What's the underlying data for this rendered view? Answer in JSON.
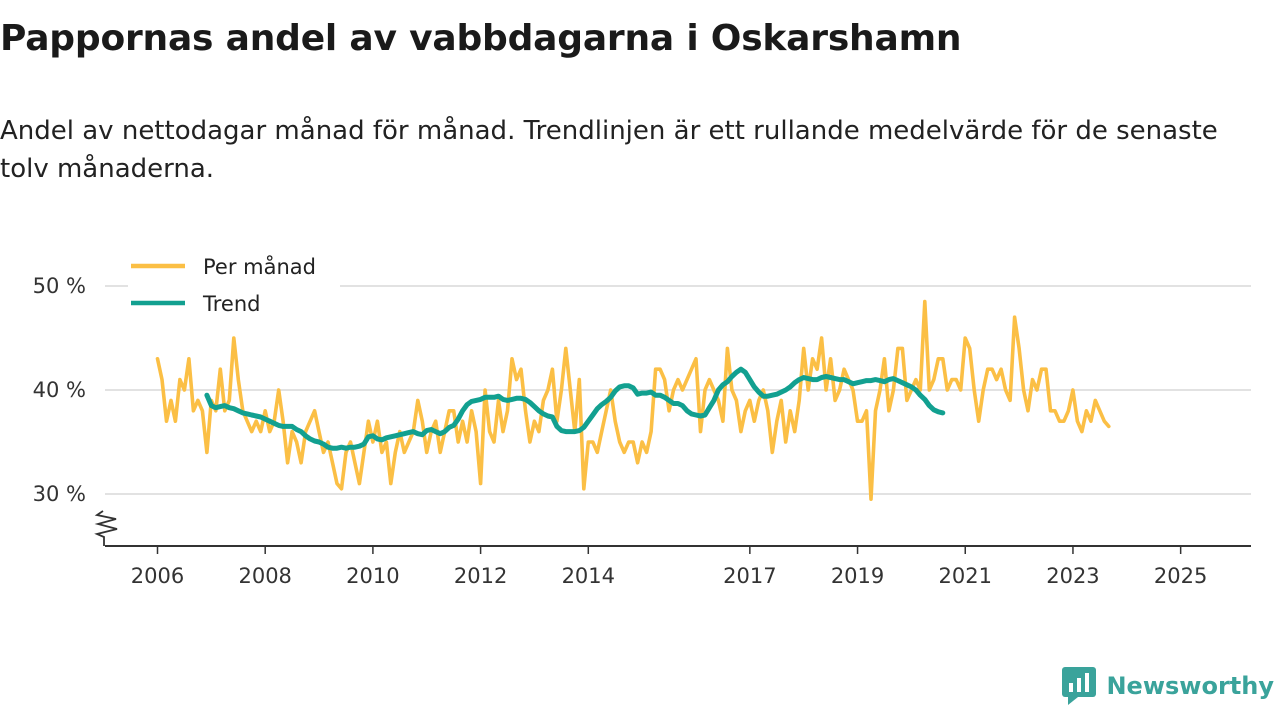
{
  "header": {
    "title": "Pappornas andel av vabbdagarna i Oskarshamn",
    "subtitle": "Andel av nettodagar månad för månad. Trendlinjen är ett rullande medelvärde för de senaste tolv månaderna."
  },
  "brand": {
    "name": "Newsworthy",
    "icon": "newsworthy-logo-icon",
    "color": "#3aa39b"
  },
  "chart_data": {
    "type": "line",
    "title": "Pappornas andel av vabbdagarna i Oskarshamn",
    "ylabel": "",
    "xlabel": "",
    "ylim": [
      25,
      52
    ],
    "xlim": [
      2005.5,
      2026.3
    ],
    "yticks": [
      30,
      40,
      50
    ],
    "ytick_labels": [
      "30 %",
      "40 %",
      "50 %"
    ],
    "xticks": [
      2006,
      2008,
      2010,
      2012,
      2014,
      2017,
      2019,
      2021,
      2023,
      2025
    ],
    "xtick_labels": [
      "2006",
      "2008",
      "2010",
      "2012",
      "2014",
      "2017",
      "2019",
      "2021",
      "2023",
      "2025"
    ],
    "grid": true,
    "legend_position": "top-left",
    "legend": [
      "Per månad",
      "Trend"
    ],
    "series": [
      {
        "name": "Per månad",
        "color": "#fbbf45",
        "x_start": 2006.0,
        "step": 0.08333,
        "values": [
          43.0,
          41.0,
          37.0,
          39.0,
          37.0,
          41.0,
          40.0,
          43.0,
          38.0,
          39.0,
          38.0,
          34.0,
          39.0,
          38.0,
          42.0,
          38.0,
          39.0,
          45.0,
          41.0,
          38.0,
          37.0,
          36.0,
          37.0,
          36.0,
          38.0,
          36.0,
          37.0,
          40.0,
          37.0,
          33.0,
          36.0,
          35.0,
          33.0,
          36.0,
          37.0,
          38.0,
          36.0,
          34.0,
          35.0,
          33.0,
          31.0,
          30.5,
          34.0,
          35.0,
          33.0,
          31.0,
          34.0,
          37.0,
          35.0,
          37.0,
          34.0,
          35.0,
          31.0,
          34.0,
          36.0,
          34.0,
          35.0,
          36.0,
          39.0,
          37.0,
          34.0,
          36.0,
          37.0,
          34.0,
          36.0,
          38.0,
          38.0,
          35.0,
          37.0,
          35.0,
          38.0,
          36.0,
          31.0,
          40.0,
          36.0,
          35.0,
          39.0,
          36.0,
          38.0,
          43.0,
          41.0,
          42.0,
          38.0,
          35.0,
          37.0,
          36.0,
          39.0,
          40.0,
          42.0,
          37.0,
          40.0,
          44.0,
          40.0,
          36.0,
          41.0,
          30.5,
          35.0,
          35.0,
          34.0,
          36.0,
          38.0,
          40.0,
          37.0,
          35.0,
          34.0,
          35.0,
          35.0,
          33.0,
          35.0,
          34.0,
          36.0,
          42.0,
          42.0,
          41.0,
          38.0,
          40.0,
          41.0,
          40.0,
          41.0,
          42.0,
          43.0,
          36.0,
          40.0,
          41.0,
          40.0,
          39.0,
          37.0,
          44.0,
          40.0,
          39.0,
          36.0,
          38.0,
          39.0,
          37.0,
          39.0,
          40.0,
          38.0,
          34.0,
          37.0,
          39.0,
          35.0,
          38.0,
          36.0,
          39.0,
          44.0,
          40.0,
          43.0,
          42.0,
          45.0,
          40.0,
          43.0,
          39.0,
          40.0,
          42.0,
          41.0,
          40.0,
          37.0,
          37.0,
          38.0,
          29.5,
          38.0,
          40.0,
          43.0,
          38.0,
          40.0,
          44.0,
          44.0,
          39.0,
          40.0,
          41.0,
          40.0,
          48.5,
          40.0,
          41.0,
          43.0,
          43.0,
          40.0,
          41.0,
          41.0,
          40.0,
          45.0,
          44.0,
          40.0,
          37.0,
          40.0,
          42.0,
          42.0,
          41.0,
          42.0,
          40.0,
          39.0,
          47.0,
          44.0,
          40.0,
          38.0,
          41.0,
          40.0,
          42.0,
          42.0,
          38.0,
          38.0,
          37.0,
          37.0,
          38.0,
          40.0,
          37.0,
          36.0,
          38.0,
          37.0,
          39.0,
          38.0,
          37.0,
          36.5
        ]
      },
      {
        "name": "Trend",
        "color": "#12a090",
        "x_start": 2006.9167,
        "step": 0.08333,
        "values": [
          39.5,
          38.5,
          38.3,
          38.4,
          38.5,
          38.3,
          38.2,
          38.0,
          37.8,
          37.7,
          37.6,
          37.5,
          37.4,
          37.2,
          37.0,
          36.8,
          36.6,
          36.5,
          36.5,
          36.5,
          36.2,
          36.0,
          35.6,
          35.3,
          35.1,
          35.0,
          34.8,
          34.5,
          34.4,
          34.4,
          34.5,
          34.4,
          34.5,
          34.5,
          34.6,
          34.8,
          35.5,
          35.6,
          35.3,
          35.2,
          35.4,
          35.5,
          35.6,
          35.7,
          35.8,
          35.9,
          36.0,
          35.8,
          35.7,
          36.1,
          36.2,
          36.0,
          35.8,
          36.0,
          36.4,
          36.6,
          37.2,
          38.0,
          38.6,
          38.9,
          39.0,
          39.1,
          39.3,
          39.3,
          39.3,
          39.4,
          39.1,
          39.0,
          39.1,
          39.2,
          39.2,
          39.1,
          38.8,
          38.4,
          38.0,
          37.7,
          37.5,
          37.4,
          36.5,
          36.1,
          36.0,
          36.0,
          36.0,
          36.1,
          36.4,
          37.0,
          37.6,
          38.2,
          38.6,
          38.9,
          39.3,
          39.9,
          40.3,
          40.4,
          40.4,
          40.2,
          39.6,
          39.7,
          39.7,
          39.8,
          39.5,
          39.5,
          39.3,
          39.0,
          38.7,
          38.7,
          38.5,
          38.0,
          37.7,
          37.6,
          37.5,
          37.6,
          38.3,
          39.0,
          40.0,
          40.5,
          40.8,
          41.3,
          41.7,
          42.0,
          41.7,
          41.0,
          40.3,
          39.8,
          39.4,
          39.4,
          39.5,
          39.6,
          39.8,
          40.0,
          40.3,
          40.7,
          41.0,
          41.2,
          41.1,
          41.0,
          41.0,
          41.2,
          41.3,
          41.2,
          41.1,
          41.0,
          41.0,
          40.8,
          40.6,
          40.7,
          40.8,
          40.9,
          40.9,
          41.0,
          40.9,
          40.8,
          41.0,
          41.1,
          40.9,
          40.7,
          40.5,
          40.3,
          40.0,
          39.5,
          39.1,
          38.5,
          38.1,
          37.9,
          37.8
        ]
      }
    ]
  }
}
